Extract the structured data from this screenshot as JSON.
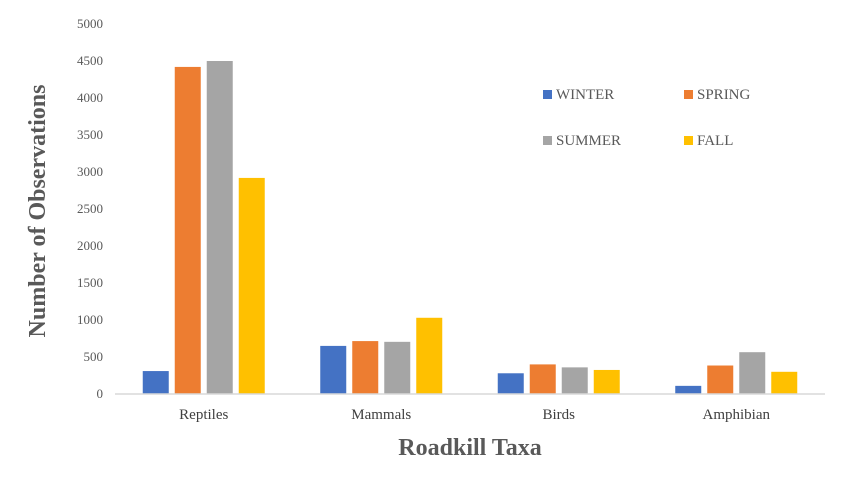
{
  "chart_data": {
    "type": "bar",
    "title": "",
    "xlabel": "Roadkill Taxa",
    "ylabel": "Number of Observations",
    "categories": [
      "Reptiles",
      "Mammals",
      "Birds",
      "Amphibian"
    ],
    "series": [
      {
        "name": "WINTER",
        "color": "#4472c4",
        "values": [
          310,
          650,
          280,
          110
        ]
      },
      {
        "name": "SPRING",
        "color": "#ed7d31",
        "values": [
          4420,
          715,
          400,
          385
        ]
      },
      {
        "name": "SUMMER",
        "color": "#a5a5a5",
        "values": [
          4500,
          705,
          360,
          565
        ]
      },
      {
        "name": "FALL",
        "color": "#ffc000",
        "values": [
          2920,
          1030,
          325,
          300
        ]
      }
    ],
    "ylim": [
      0,
      5000
    ],
    "yticks": [
      0,
      500,
      1000,
      1500,
      2000,
      2500,
      3000,
      3500,
      4000,
      4500,
      5000
    ],
    "grid": false,
    "legend_position": "top-right",
    "axis_color": "#d9d9d9"
  }
}
